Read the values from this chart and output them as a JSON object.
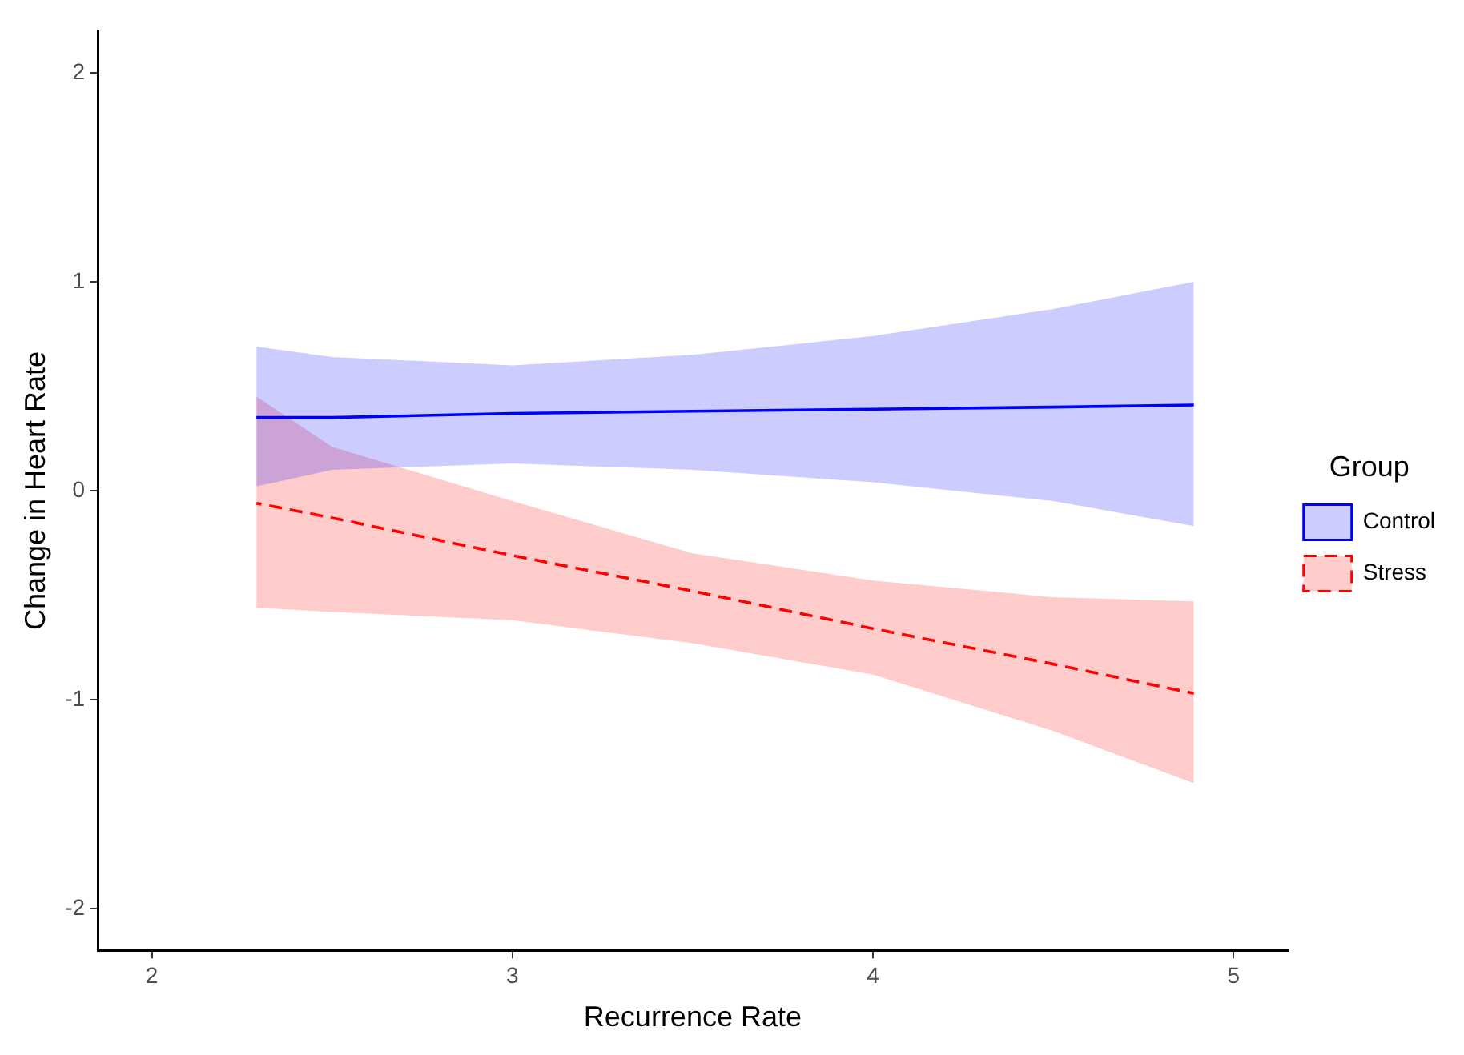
{
  "chart_data": {
    "type": "line",
    "xlabel": "Recurrence Rate",
    "ylabel": "Change in Heart Rate",
    "legend_title": "Group",
    "legend": "right",
    "grid": false,
    "marker": "none",
    "xlim": [
      1.85,
      5.15
    ],
    "xticks": [
      2,
      3,
      4,
      5
    ],
    "ylim": [
      -2.2,
      2.2
    ],
    "yticks": [
      -2,
      -1,
      0,
      1,
      2
    ],
    "series": [
      {
        "name": "Control",
        "color": "#0000ff",
        "line_style": "solid",
        "x": [
          2.29,
          2.5,
          3,
          3.5,
          4,
          4.5,
          4.89
        ],
        "values": [
          0.35,
          0.35,
          0.37,
          0.38,
          0.39,
          0.4,
          0.41
        ],
        "lower": [
          0.02,
          0.1,
          0.13,
          0.1,
          0.04,
          -0.05,
          -0.17
        ],
        "upper": [
          0.69,
          0.64,
          0.6,
          0.65,
          0.74,
          0.87,
          1.0
        ]
      },
      {
        "name": "Stress",
        "color": "#ff0000",
        "line_style": "dashed",
        "x": [
          2.29,
          2.5,
          3,
          3.5,
          4,
          4.5,
          4.89
        ],
        "values": [
          -0.06,
          -0.13,
          -0.31,
          -0.48,
          -0.66,
          -0.83,
          -0.97
        ],
        "lower": [
          -0.56,
          -0.58,
          -0.62,
          -0.73,
          -0.88,
          -1.15,
          -1.4
        ],
        "upper": [
          0.45,
          0.21,
          -0.05,
          -0.3,
          -0.43,
          -0.51,
          -0.53
        ]
      }
    ]
  }
}
